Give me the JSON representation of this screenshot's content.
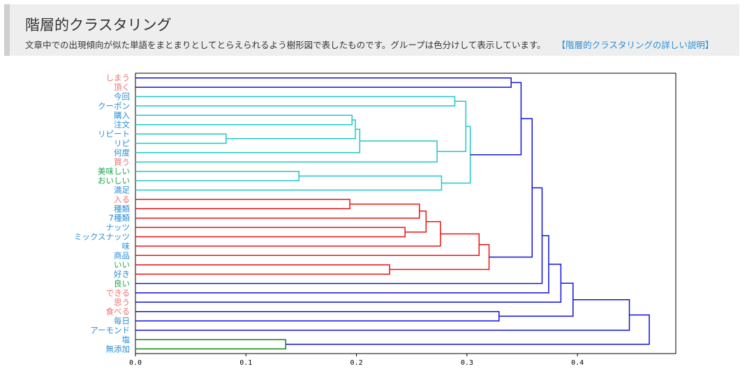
{
  "header": {
    "title": "階層的クラスタリング",
    "description": "文章中での出現傾向が似た単語をまとまりとしてとらえられるよう樹形図で表したものです。グループは色分けして表示しています。",
    "link_label": "【階層的クラスタリングの詳しい説明】"
  },
  "colors": {
    "noun": "#2a8fd6",
    "verb": "#f07070",
    "adjective": "#1aa84a",
    "cluster_cyan": "#1ec8c8",
    "cluster_red": "#ee1111",
    "cluster_green": "#118811",
    "link_blue": "#1010dd"
  },
  "chart_data": {
    "type": "dendrogram",
    "orientation": "left-to-right",
    "xlim": [
      0,
      0.489
    ],
    "x_ticks": [
      "0.0",
      "0.1",
      "0.2",
      "0.3",
      "0.4"
    ],
    "leaves": [
      {
        "label": "しまう",
        "pos": "verb"
      },
      {
        "label": "頂く",
        "pos": "verb"
      },
      {
        "label": "今回",
        "pos": "noun"
      },
      {
        "label": "クーポン",
        "pos": "noun"
      },
      {
        "label": "購入",
        "pos": "noun"
      },
      {
        "label": "注文",
        "pos": "noun"
      },
      {
        "label": "リピート",
        "pos": "noun"
      },
      {
        "label": "リピ",
        "pos": "noun"
      },
      {
        "label": "何度",
        "pos": "noun"
      },
      {
        "label": "買う",
        "pos": "verb"
      },
      {
        "label": "美味しい",
        "pos": "adjective"
      },
      {
        "label": "おいしい",
        "pos": "adjective"
      },
      {
        "label": "満足",
        "pos": "noun"
      },
      {
        "label": "入る",
        "pos": "verb"
      },
      {
        "label": "種類",
        "pos": "noun"
      },
      {
        "label": "7種類",
        "pos": "noun"
      },
      {
        "label": "ナッツ",
        "pos": "noun"
      },
      {
        "label": "ミックスナッツ",
        "pos": "noun"
      },
      {
        "label": "味",
        "pos": "noun"
      },
      {
        "label": "商品",
        "pos": "noun"
      },
      {
        "label": "いい",
        "pos": "adjective"
      },
      {
        "label": "好き",
        "pos": "noun"
      },
      {
        "label": "良い",
        "pos": "adjective"
      },
      {
        "label": "できる",
        "pos": "verb"
      },
      {
        "label": "思う",
        "pos": "verb"
      },
      {
        "label": "食べる",
        "pos": "verb"
      },
      {
        "label": "毎日",
        "pos": "noun"
      },
      {
        "label": "アーモンド",
        "pos": "noun"
      },
      {
        "label": "塩",
        "pos": "noun"
      },
      {
        "label": "無添加",
        "pos": "noun"
      }
    ],
    "merges": [
      {
        "id": "n1",
        "a": "リピート",
        "b": "リピ",
        "height": 0.082,
        "color": "cyan"
      },
      {
        "id": "n2",
        "a": "美味しい",
        "b": "おいしい",
        "height": 0.148,
        "color": "cyan"
      },
      {
        "id": "n3",
        "a": "入る",
        "b": "種類",
        "height": 0.194,
        "color": "red"
      },
      {
        "id": "n4",
        "a": "購入",
        "b": "注文",
        "height": 0.196,
        "color": "cyan"
      },
      {
        "id": "n5",
        "a": "n4",
        "b": "n1",
        "height": 0.199,
        "color": "cyan"
      },
      {
        "id": "n6",
        "a": "n5",
        "b": "何度",
        "height": 0.203,
        "color": "cyan"
      },
      {
        "id": "n7",
        "a": "いい",
        "b": "好き",
        "height": 0.23,
        "color": "red"
      },
      {
        "id": "n8",
        "a": "ナッツ",
        "b": "ミックスナッツ",
        "height": 0.244,
        "color": "red"
      },
      {
        "id": "n9",
        "a": "n3",
        "b": "7種類",
        "height": 0.257,
        "color": "red"
      },
      {
        "id": "n10",
        "a": "n9",
        "b": "n8",
        "height": 0.263,
        "color": "red"
      },
      {
        "id": "n11",
        "a": "n6",
        "b": "買う",
        "height": 0.273,
        "color": "cyan"
      },
      {
        "id": "n12",
        "a": "n10",
        "b": "味",
        "height": 0.276,
        "color": "red"
      },
      {
        "id": "n13",
        "a": "n2",
        "b": "満足",
        "height": 0.277,
        "color": "cyan"
      },
      {
        "id": "n14",
        "a": "今回",
        "b": "クーポン",
        "height": 0.289,
        "color": "cyan"
      },
      {
        "id": "n15",
        "a": "n14",
        "b": "n11",
        "height": 0.299,
        "color": "cyan"
      },
      {
        "id": "n16",
        "a": "n15",
        "b": "n13",
        "height": 0.303,
        "color": "cyan"
      },
      {
        "id": "n17",
        "a": "n12",
        "b": "商品",
        "height": 0.311,
        "color": "red"
      },
      {
        "id": "n18",
        "a": "n17",
        "b": "n7",
        "height": 0.32,
        "color": "red"
      },
      {
        "id": "n19",
        "a": "食べる",
        "b": "毎日",
        "height": 0.329,
        "color": "blue"
      },
      {
        "id": "n20",
        "a": "しまう",
        "b": "頂く",
        "height": 0.34,
        "color": "blue"
      },
      {
        "id": "n21",
        "a": "n20",
        "b": "n16",
        "height": 0.349,
        "color": "blue"
      },
      {
        "id": "n22",
        "a": "n21",
        "b": "n18",
        "height": 0.359,
        "color": "blue"
      },
      {
        "id": "n23",
        "a": "n22",
        "b": "良い",
        "height": 0.368,
        "color": "blue"
      },
      {
        "id": "n24",
        "a": "n23",
        "b": "できる",
        "height": 0.374,
        "color": "blue"
      },
      {
        "id": "n25",
        "a": "n24",
        "b": "思う",
        "height": 0.385,
        "color": "blue"
      },
      {
        "id": "n26",
        "a": "n25",
        "b": "n19",
        "height": 0.396,
        "color": "blue"
      },
      {
        "id": "n27",
        "a": "n26",
        "b": "アーモンド",
        "height": 0.447,
        "color": "blue"
      },
      {
        "id": "n28",
        "a": "塩",
        "b": "無添加",
        "height": 0.136,
        "color": "green"
      },
      {
        "id": "n29",
        "a": "n27",
        "b": "n28",
        "height": 0.465,
        "color": "blue"
      }
    ]
  }
}
